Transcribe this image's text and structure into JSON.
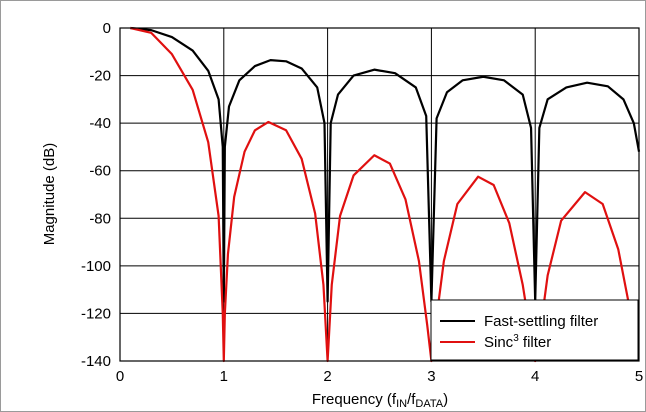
{
  "chart_data": {
    "type": "line",
    "title": "",
    "xlabel": {
      "base": "Frequency (f",
      "sub1": "IN",
      "mid": "/f",
      "sub2": "DATA",
      "end": ")"
    },
    "ylabel": "Magnitude (dB)",
    "xlim": [
      0,
      5
    ],
    "ylim": [
      -140,
      0
    ],
    "x_ticks": [
      0,
      1,
      2,
      3,
      4,
      5
    ],
    "x_tick_labels": [
      "0",
      "1",
      "2",
      "3",
      "4",
      "5"
    ],
    "y_ticks": [
      0,
      -20,
      -40,
      -60,
      -80,
      -100,
      -120,
      -140
    ],
    "y_tick_labels": [
      "0",
      "-20",
      "-40",
      "-60",
      "-80",
      "-100",
      "-120",
      "-140"
    ],
    "grid": true,
    "legend_position": "bottom-right",
    "series": [
      {
        "name": "Fast-settling filter",
        "legend_label": {
          "base": "Fast-settling filter",
          "sup": ""
        },
        "color": "#000000",
        "x": [
          0.1,
          0.3,
          0.5,
          0.7,
          0.85,
          0.95,
          0.99,
          1.0,
          1.01,
          1.05,
          1.15,
          1.3,
          1.45,
          1.6,
          1.75,
          1.9,
          1.97,
          2.0,
          2.03,
          2.1,
          2.25,
          2.45,
          2.65,
          2.85,
          2.95,
          3.0,
          3.05,
          3.15,
          3.3,
          3.5,
          3.7,
          3.88,
          3.96,
          4.0,
          4.04,
          4.12,
          4.3,
          4.5,
          4.7,
          4.85,
          4.95,
          5.0
        ],
        "y": [
          0,
          -0.9,
          -3.8,
          -9.5,
          -18,
          -30,
          -50,
          -115,
          -50,
          -33,
          -22,
          -16,
          -13.5,
          -14,
          -17,
          -25,
          -40,
          -115,
          -40,
          -28,
          -20,
          -17.5,
          -19,
          -25,
          -37,
          -115,
          -38,
          -27,
          -22,
          -20.5,
          -22,
          -28,
          -42,
          -115,
          -42,
          -30,
          -25,
          -23,
          -24.5,
          -30,
          -40,
          -52
        ]
      },
      {
        "name": "Sinc3 filter",
        "legend_label": {
          "base": "Sinc",
          "sup": "3",
          "end": " filter"
        },
        "color": "#e01010",
        "x": [
          0.1,
          0.3,
          0.5,
          0.7,
          0.85,
          0.95,
          0.99,
          1.0,
          1.01,
          1.04,
          1.1,
          1.2,
          1.3,
          1.43,
          1.6,
          1.75,
          1.88,
          1.96,
          2.0,
          2.04,
          2.12,
          2.25,
          2.45,
          2.6,
          2.75,
          2.88,
          2.96,
          3.0,
          3.04,
          3.12,
          3.25,
          3.45,
          3.6,
          3.75,
          3.88,
          3.96,
          4.0,
          4.04,
          4.12,
          4.25,
          4.48,
          4.65,
          4.8,
          4.92,
          4.96
        ],
        "y": [
          0,
          -2,
          -11,
          -26,
          -48,
          -79,
          -120,
          -140,
          -120,
          -95,
          -71,
          -52,
          -43,
          -39.5,
          -43,
          -55,
          -78,
          -108,
          -140,
          -108,
          -79,
          -62,
          -53.5,
          -57,
          -72,
          -98,
          -125,
          -140,
          -125,
          -98,
          -74,
          -62.5,
          -66,
          -82,
          -108,
          -130,
          -140,
          -130,
          -104,
          -81,
          -69,
          -74,
          -93,
          -120,
          -135
        ]
      }
    ]
  }
}
